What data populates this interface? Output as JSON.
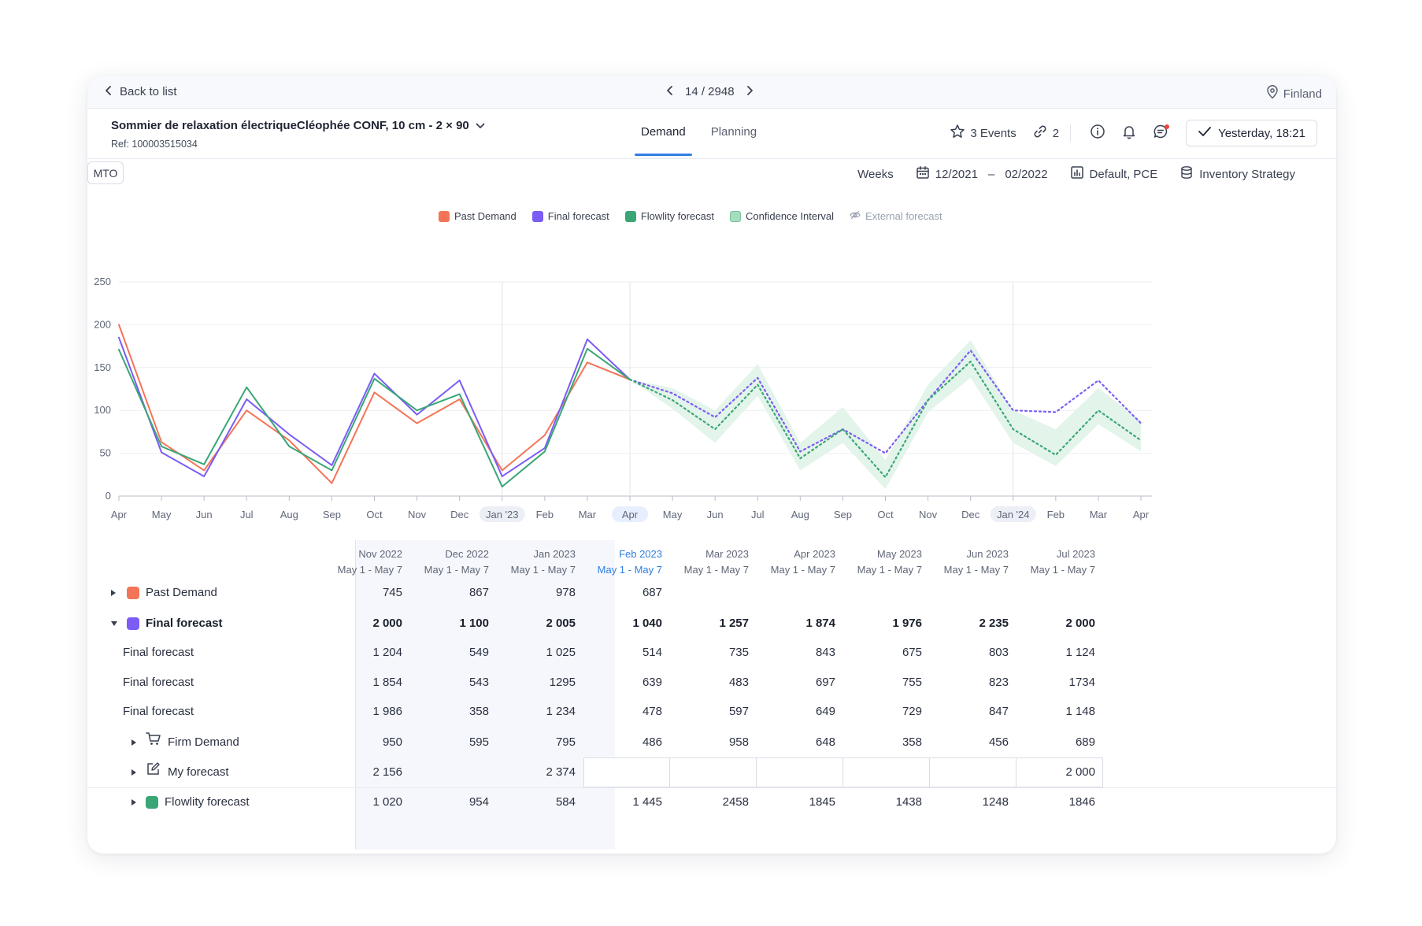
{
  "topbar": {
    "back_label": "Back to list",
    "pager_text": "14 / 2948",
    "region": "Finland"
  },
  "product": {
    "title": "Sommier de relaxation électriqueCléophée CONF, 10 cm - 2 × 90",
    "ref": "Ref: 100003515034",
    "tag": "MTO"
  },
  "tabs": [
    {
      "label": "Demand",
      "active": true
    },
    {
      "label": "Planning",
      "active": false
    }
  ],
  "actions": {
    "events_label": "3 Events",
    "links_count": "2",
    "updated_label": "Yesterday, 18:21"
  },
  "filters": {
    "granularity": "Weeks",
    "date_from": "12/2021",
    "date_sep": "–",
    "date_to": "02/2022",
    "view": "Default, PCE",
    "strategy": "Inventory Strategy"
  },
  "legend": [
    {
      "label": "Past Demand",
      "color": "#f47458"
    },
    {
      "label": "Final forecast",
      "color": "#7b5cf5"
    },
    {
      "label": "Flowlity forecast",
      "color": "#3aa676"
    },
    {
      "label": "Confidence Interval",
      "color": "#a7dcbf"
    },
    {
      "label": "External forecast",
      "color": "#9aa1b0",
      "hidden": true
    }
  ],
  "chart_data": {
    "type": "line",
    "ylim": [
      0,
      250
    ],
    "yticks": [
      0,
      50,
      100,
      150,
      200,
      250
    ],
    "x": [
      "Apr",
      "May",
      "Jun",
      "Jul",
      "Aug",
      "Sep",
      "Oct",
      "Nov",
      "Dec",
      "Jan '23",
      "Feb",
      "Mar",
      "Apr",
      "May",
      "Jun",
      "Jul",
      "Aug",
      "Sep",
      "Oct",
      "Nov",
      "Dec",
      "Jan '24",
      "Feb",
      "Mar",
      "Apr"
    ],
    "highlighted_ticks": [
      "Jan '23",
      "Apr",
      "Jan '24"
    ],
    "series": [
      {
        "name": "Past Demand",
        "color": "#f47458",
        "style": "solid",
        "values": [
          200,
          63,
          30,
          100,
          65,
          15,
          121,
          85,
          113,
          30,
          71,
          156,
          136,
          null,
          null,
          null,
          null,
          null,
          null,
          null,
          null,
          null,
          null,
          null,
          null
        ]
      },
      {
        "name": "Final forecast",
        "color": "#7b5cf5",
        "style": "solid",
        "values": [
          185,
          51,
          23,
          113,
          72,
          36,
          143,
          95,
          135,
          23,
          56,
          183,
          136,
          null,
          null,
          null,
          null,
          null,
          null,
          null,
          null,
          null,
          null,
          null,
          null
        ]
      },
      {
        "name": "Flowlity forecast",
        "color": "#3aa676",
        "style": "solid",
        "values": [
          171,
          58,
          37,
          127,
          58,
          30,
          137,
          100,
          119,
          11,
          52,
          172,
          136,
          null,
          null,
          null,
          null,
          null,
          null,
          null,
          null,
          null,
          null,
          null,
          null
        ]
      },
      {
        "name": "Final forecast",
        "color": "#7b5cf5",
        "style": "dotted",
        "values": [
          null,
          null,
          null,
          null,
          null,
          null,
          null,
          null,
          null,
          null,
          null,
          null,
          136,
          120,
          92,
          138,
          52,
          78,
          50,
          112,
          170,
          100,
          98,
          135,
          85
        ]
      },
      {
        "name": "Flowlity forecast",
        "color": "#3aa676",
        "style": "dotted",
        "values": [
          null,
          null,
          null,
          null,
          null,
          null,
          null,
          null,
          null,
          null,
          null,
          null,
          136,
          112,
          78,
          130,
          44,
          78,
          22,
          112,
          157,
          78,
          48,
          100,
          65
        ]
      },
      {
        "name": "Confidence Interval",
        "color": "#e3f4ea",
        "style": "band",
        "lower": [
          null,
          null,
          null,
          null,
          null,
          null,
          null,
          null,
          null,
          null,
          null,
          null,
          136,
          102,
          62,
          117,
          30,
          62,
          8,
          98,
          138,
          62,
          35,
          84,
          52
        ],
        "upper": [
          null,
          null,
          null,
          null,
          null,
          null,
          null,
          null,
          null,
          null,
          null,
          null,
          136,
          126,
          100,
          154,
          62,
          104,
          42,
          130,
          182,
          100,
          78,
          126,
          88
        ]
      }
    ]
  },
  "table": {
    "columns": [
      {
        "period": "Nov 2022",
        "range": "May 1 - May 7"
      },
      {
        "period": "Dec 2022",
        "range": "May 1 - May 7"
      },
      {
        "period": "Jan 2023",
        "range": "May 1 - May 7"
      },
      {
        "period": "Feb 2023",
        "range": "May 1 - May 7",
        "current": true
      },
      {
        "period": "Mar 2023",
        "range": "May 1 - May 7"
      },
      {
        "period": "Apr 2023",
        "range": "May 1 - May 7"
      },
      {
        "period": "May 2023",
        "range": "May 1 - May 7"
      },
      {
        "period": "Jun 2023",
        "range": "May 1 - May 7"
      },
      {
        "period": "Jul 2023",
        "range": "May 1 - May 7"
      }
    ],
    "rows": [
      {
        "label": "Past Demand",
        "values": [
          "745",
          "867",
          "978",
          "687",
          "",
          "",
          "",
          "",
          ""
        ]
      },
      {
        "label": "Final forecast",
        "values": [
          "2 000",
          "1 100",
          "2 005",
          "1 040",
          "1 257",
          "1 874",
          "1 976",
          "2 235",
          "2 000"
        ]
      },
      {
        "label": "Final forecast",
        "values": [
          "1 204",
          "549",
          "1 025",
          "514",
          "735",
          "843",
          "675",
          "803",
          "1 124"
        ]
      },
      {
        "label": "Final forecast",
        "values": [
          "1 854",
          "543",
          "1295",
          "639",
          "483",
          "697",
          "755",
          "823",
          "1734"
        ]
      },
      {
        "label": "Final forecast",
        "values": [
          "1 986",
          "358",
          "1 234",
          "478",
          "597",
          "649",
          "729",
          "847",
          "1 148"
        ]
      },
      {
        "label": "Firm Demand",
        "values": [
          "950",
          "595",
          "795",
          "486",
          "958",
          "648",
          "358",
          "456",
          "689"
        ]
      },
      {
        "label": "My forecast",
        "values": [
          "2 156",
          "",
          "2 374",
          "",
          "",
          "",
          "",
          "",
          "2 000"
        ]
      },
      {
        "label": "Flowlity forecast",
        "values": [
          "1 020",
          "954",
          "584",
          "1 445",
          "2458",
          "1845",
          "1438",
          "1248",
          "1846"
        ]
      }
    ]
  }
}
